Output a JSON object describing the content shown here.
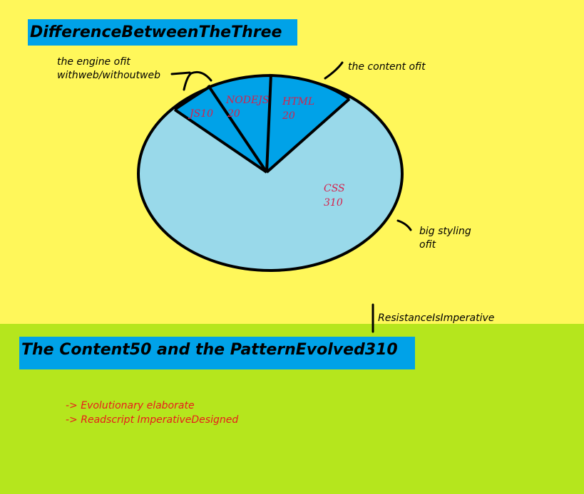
{
  "title": "DifferenceBetweenTheThree",
  "subtitle": "The Content50 and the PatternEvolved310",
  "notes": {
    "engine": [
      "the engine ofit",
      "withweb/withoutweb"
    ],
    "content": "the content ofit",
    "styling": [
      "big styling",
      "ofit"
    ],
    "resistance": "ResistanceIsImperative"
  },
  "bullets": [
    "-> Evolutionary elaborate",
    "-> Readscript ImperativeDesigned"
  ],
  "colors": {
    "top_background": "#FFF75A",
    "bottom_background": "#B5E61D",
    "title_box": "#00A2E8",
    "slice_dark": "#00A2E8",
    "slice_light": "#99D9EA",
    "label_text": "#D6204B"
  },
  "chart_data": {
    "type": "pie",
    "title": "",
    "slices": [
      {
        "label": "JS",
        "value": 10,
        "label_text": "JS10"
      },
      {
        "label": "NODEJS",
        "value": 20,
        "label_text": [
          "NODEJS",
          "20"
        ]
      },
      {
        "label": "HTML",
        "value": 20,
        "label_text": [
          "HTML",
          "20"
        ]
      },
      {
        "label": "CSS",
        "value": 310,
        "label_text": [
          "CSS",
          "310"
        ]
      }
    ]
  }
}
